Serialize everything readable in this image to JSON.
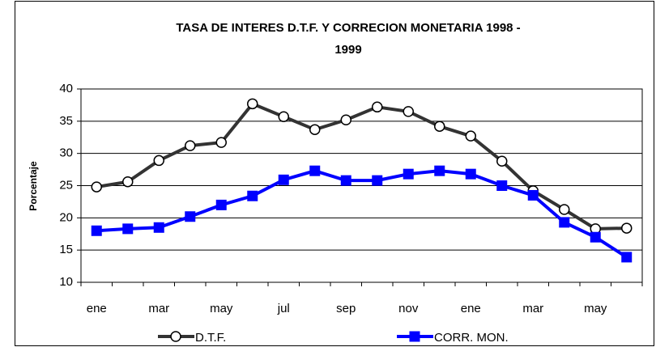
{
  "chart_data": {
    "type": "line",
    "title": [
      "TASA DE INTERES D.T.F. Y CORRECION MONETARIA 1998 -",
      "1999"
    ],
    "y_label": "Porcentaje",
    "categories": [
      "ene",
      null,
      "mar",
      null,
      "may",
      null,
      "jul",
      null,
      "sep",
      null,
      "nov",
      null,
      "ene",
      null,
      "mar",
      null,
      "may",
      null
    ],
    "series": [
      {
        "name": "D.T.F.",
        "color": "#333333",
        "marker": "circle",
        "values": [
          24.8,
          25.6,
          28.9,
          31.2,
          31.7,
          37.7,
          35.7,
          33.7,
          35.2,
          37.2,
          36.5,
          34.2,
          32.7,
          28.8,
          24.2,
          21.3,
          18.3,
          18.4
        ]
      },
      {
        "name": "CORR. MON.",
        "color": "#0000ff",
        "marker": "square",
        "values": [
          18.0,
          18.3,
          18.5,
          20.2,
          22.0,
          23.4,
          25.9,
          27.3,
          25.8,
          25.8,
          26.8,
          27.3,
          26.8,
          25.0,
          23.5,
          19.3,
          17.0,
          13.9
        ]
      }
    ],
    "ylim": [
      10,
      40
    ],
    "yticks": [
      10,
      15,
      20,
      25,
      30,
      35,
      40
    ],
    "grid": true,
    "legend": "bottom"
  }
}
